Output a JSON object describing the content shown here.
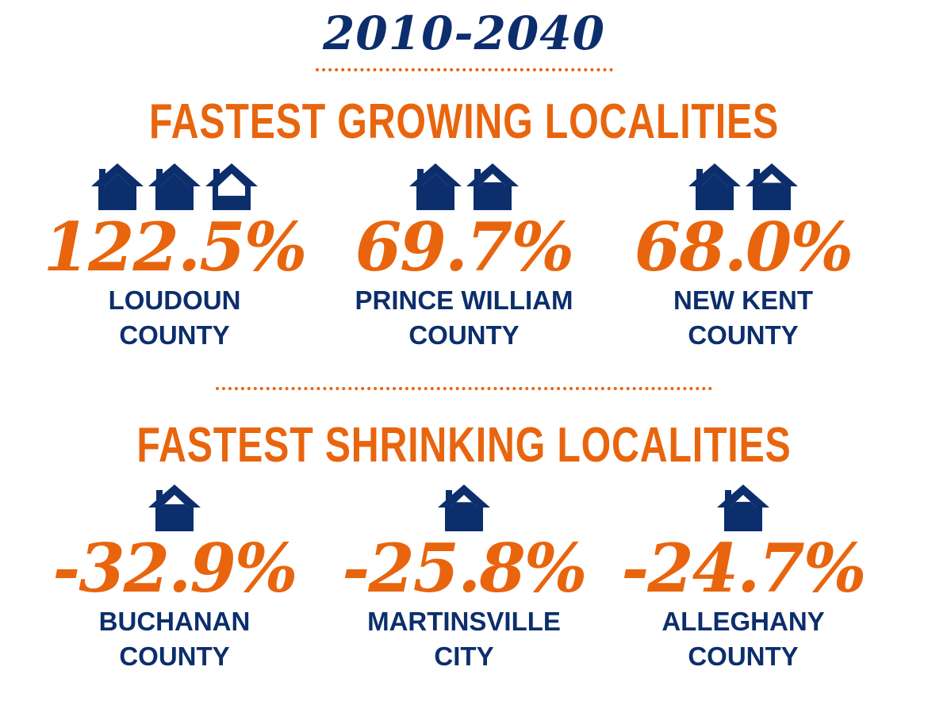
{
  "title": "2010-2040",
  "colors": {
    "navy": "#0c2e6c",
    "orange": "#e8650e"
  },
  "growing": {
    "heading": "FASTEST GROWING LOCALITIES",
    "items": [
      {
        "value": "122.5%",
        "name_line1": "LOUDOUN",
        "name_line2": "COUNTY",
        "houses_filled": 2.225
      },
      {
        "value": "69.7%",
        "name_line1": "PRINCE WILLIAM",
        "name_line2": "COUNTY",
        "houses_filled": 1.697
      },
      {
        "value": "68.0%",
        "name_line1": "NEW KENT",
        "name_line2": "COUNTY",
        "houses_filled": 1.68
      }
    ]
  },
  "shrinking": {
    "heading": "FASTEST SHRINKING LOCALITIES",
    "items": [
      {
        "value": "-32.9%",
        "name_line1": "BUCHANAN",
        "name_line2": "COUNTY",
        "houses_filled": 0.671
      },
      {
        "value": "-25.8%",
        "name_line1": "MARTINSVILLE",
        "name_line2": "CITY",
        "houses_filled": 0.742
      },
      {
        "value": "-24.7%",
        "name_line1": "ALLEGHANY",
        "name_line2": "COUNTY",
        "houses_filled": 0.753
      }
    ]
  }
}
